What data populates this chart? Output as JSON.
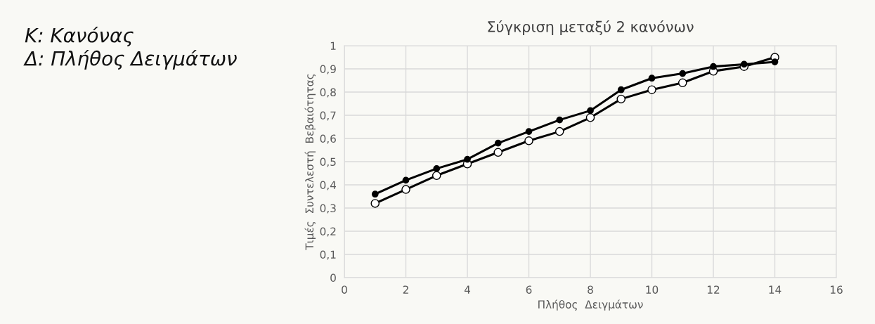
{
  "chart_data": {
    "type": "line",
    "title": "Σύγκριση μεταξύ 2 κανόνων",
    "xlabel": "Πλήθος  Δειγμάτων",
    "ylabel": "Τιμές  Συντελεστή  Βεβαιότητας",
    "annotations": [
      "K: Κανόνας",
      "Δ: Πλήθος Δειγμάτων"
    ],
    "x": [
      1,
      2,
      3,
      4,
      5,
      6,
      7,
      8,
      9,
      10,
      11,
      12,
      13,
      14
    ],
    "series": [
      {
        "color": "#000000",
        "values": [
          0.36,
          0.42,
          0.47,
          0.51,
          0.58,
          0.63,
          0.68,
          0.72,
          0.81,
          0.86,
          0.88,
          0.91,
          0.92,
          0.93
        ]
      },
      {
        "color": "#000000",
        "values": [
          0.32,
          0.38,
          0.44,
          0.49,
          0.54,
          0.59,
          0.63,
          0.69,
          0.77,
          0.81,
          0.84,
          0.89,
          0.91,
          0.95
        ]
      }
    ],
    "xlim": [
      0,
      16
    ],
    "xticks": [
      0,
      2,
      4,
      6,
      8,
      10,
      12,
      14,
      16
    ],
    "ylim": [
      0,
      1
    ],
    "yticks": [
      {
        "value": 0,
        "label": "0"
      },
      {
        "value": 0.1,
        "label": "0,1"
      },
      {
        "value": 0.2,
        "label": "0,2"
      },
      {
        "value": 0.3,
        "label": "0,3"
      },
      {
        "value": 0.4,
        "label": "0,4"
      },
      {
        "value": 0.5,
        "label": "0,5"
      },
      {
        "value": 0.6,
        "label": "0,6"
      },
      {
        "value": 0.7,
        "label": "0,7"
      },
      {
        "value": 0.8,
        "label": "0,8"
      },
      {
        "value": 0.9,
        "label": "0,9"
      },
      {
        "value": 1,
        "label": "1"
      }
    ],
    "grid": true,
    "marker": "circle",
    "line_style": "solid"
  }
}
